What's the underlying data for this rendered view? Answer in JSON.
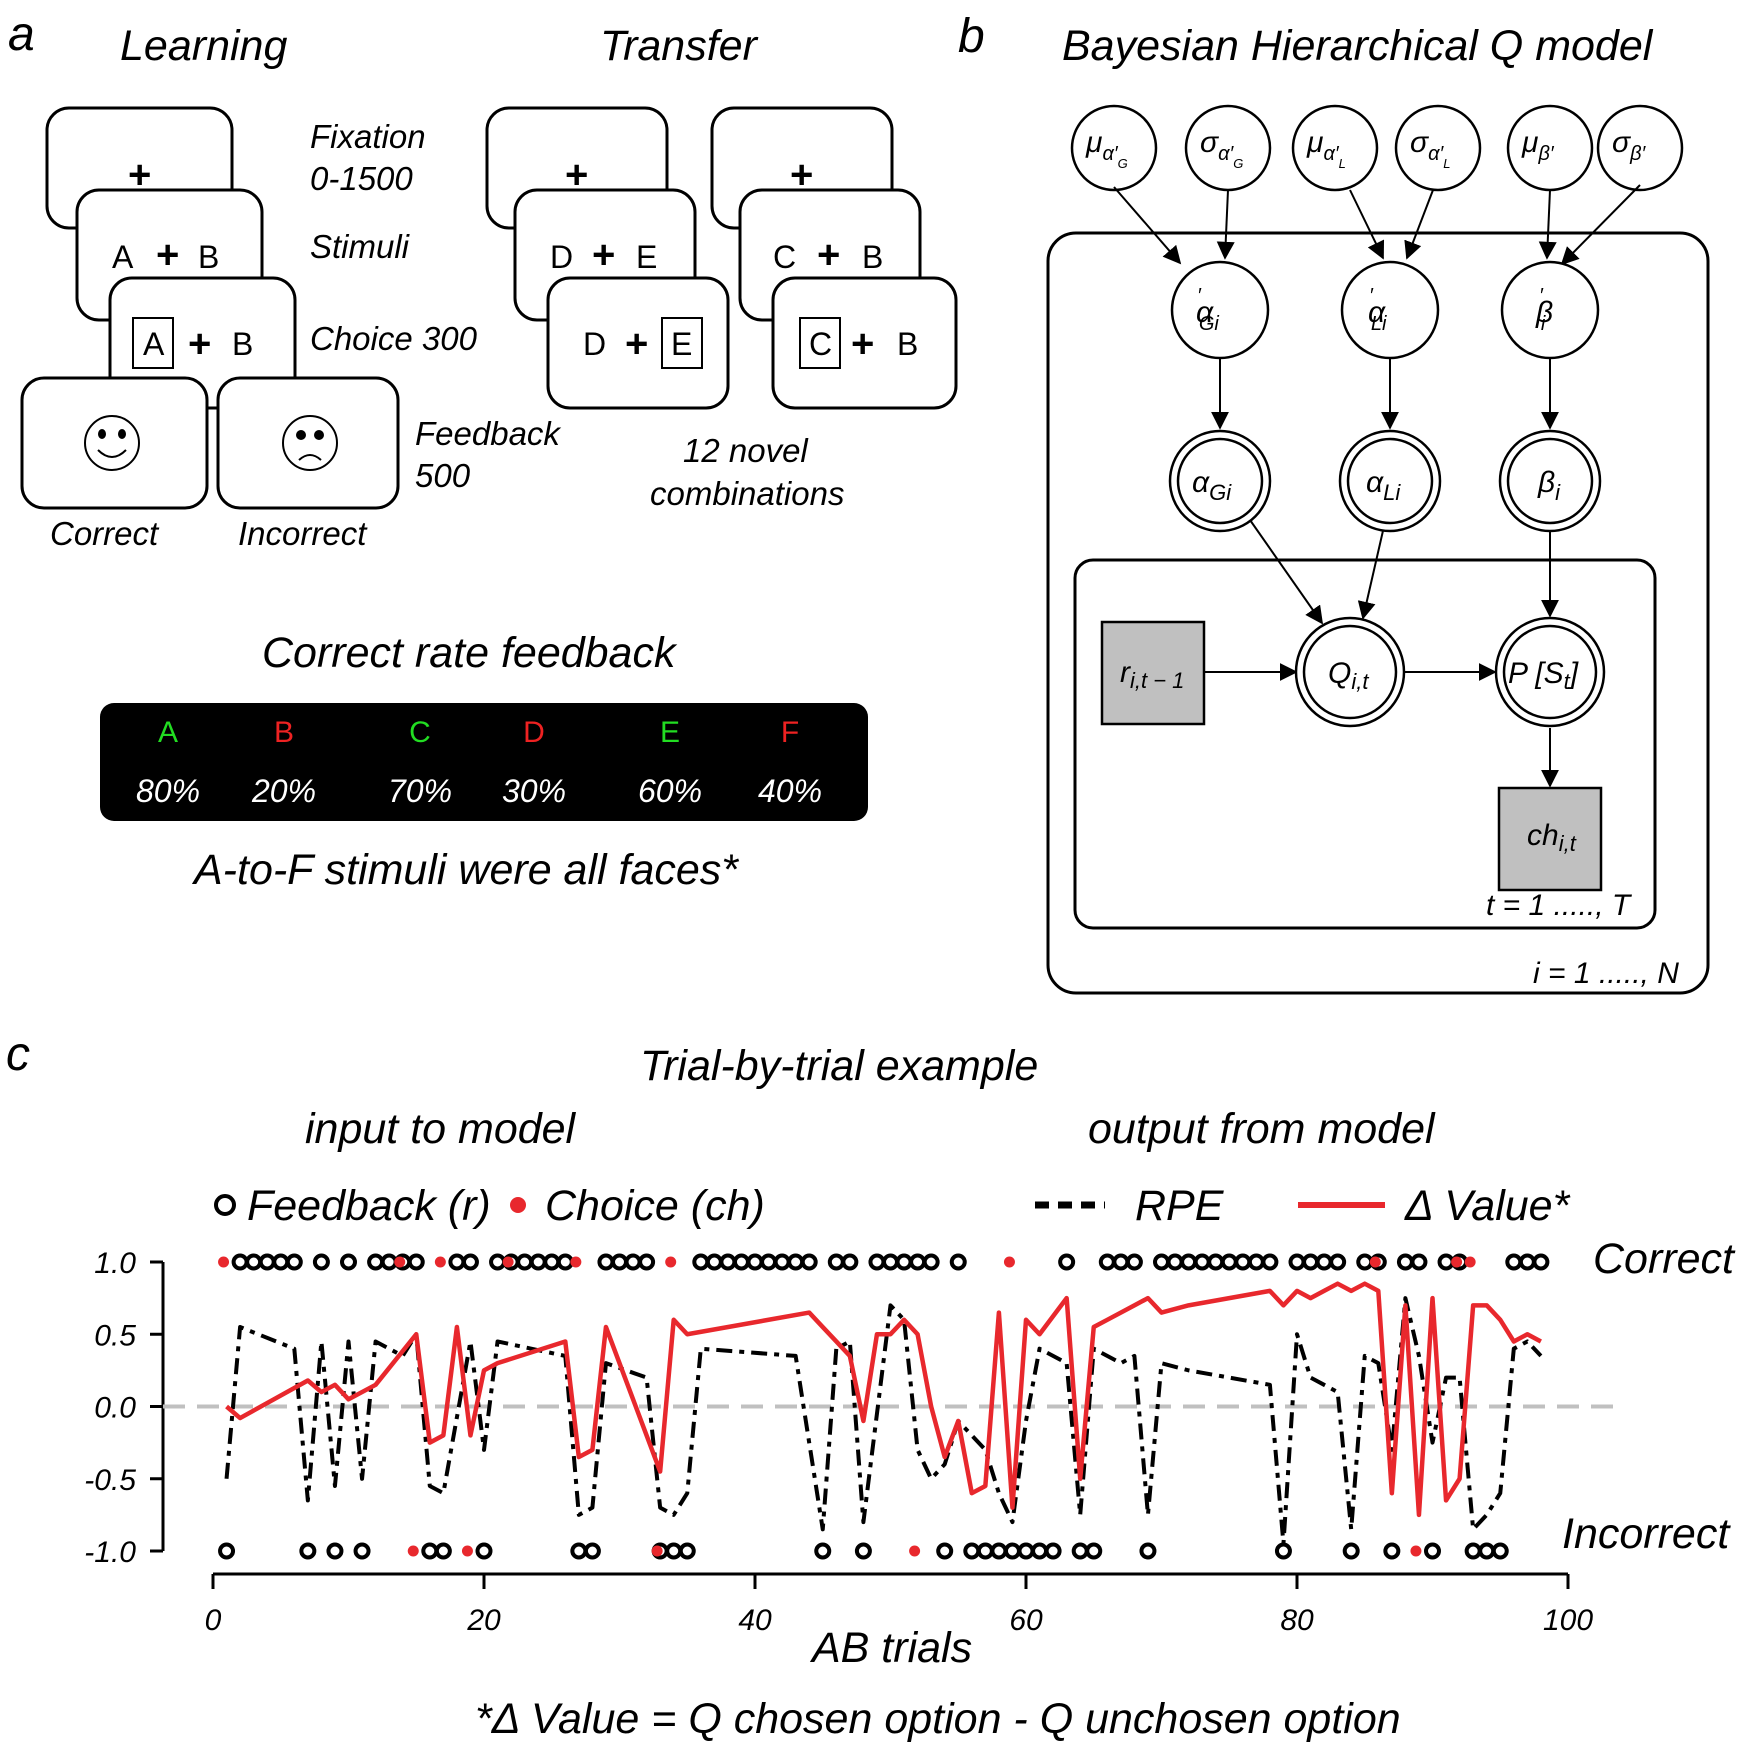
{
  "panel_a": {
    "letter": "a",
    "learning_title": "Learning",
    "transfer_title": "Transfer",
    "fixation_label_1": "Fixation",
    "fixation_label_2": "0-1500",
    "stimuli_label": "Stimuli",
    "choice_label": "Choice 300",
    "feedback_label_1": "Feedback",
    "feedback_label_2": "500",
    "correct_label": "Correct",
    "incorrect_label": "Incorrect",
    "plus": "+",
    "learning_pair": [
      "A",
      "B"
    ],
    "transfer_pair_1": [
      "D",
      "E"
    ],
    "transfer_pair_2": [
      "C",
      "B"
    ],
    "novel_1": "12 novel",
    "novel_2": "combinations",
    "rate_title": "Correct rate feedback",
    "rates": [
      {
        "letter": "A",
        "pct": "80%",
        "color": "#22dd22"
      },
      {
        "letter": "B",
        "pct": "20%",
        "color": "#ee2222"
      },
      {
        "letter": "C",
        "pct": "70%",
        "color": "#22dd22"
      },
      {
        "letter": "D",
        "pct": "30%",
        "color": "#ee2222"
      },
      {
        "letter": "E",
        "pct": "60%",
        "color": "#22dd22"
      },
      {
        "letter": "F",
        "pct": "40%",
        "color": "#ee2222"
      }
    ],
    "faces_note": "A-to-F stimuli were all faces*"
  },
  "panel_b": {
    "letter": "b",
    "title": "Bayesian Hierarchical Q model",
    "hyper": [
      {
        "sym": "μ",
        "sub": "α′",
        "sub2": "G"
      },
      {
        "sym": "σ",
        "sub": "α′",
        "sub2": "G"
      },
      {
        "sym": "μ",
        "sub": "α′",
        "sub2": "L"
      },
      {
        "sym": "σ",
        "sub": "α′",
        "sub2": "L"
      },
      {
        "sym": "μ",
        "sub": "β′",
        "sub2": ""
      },
      {
        "sym": "σ",
        "sub": "β′",
        "sub2": ""
      }
    ],
    "subject_params": [
      {
        "sym": "α",
        "sup": "′",
        "sub": "Gi"
      },
      {
        "sym": "α",
        "sup": "′",
        "sub": "Li"
      },
      {
        "sym": "β",
        "sup": "′",
        "sub": "i"
      }
    ],
    "transformed": [
      {
        "sym": "α",
        "sub": "Gi"
      },
      {
        "sym": "α",
        "sub": "Li"
      },
      {
        "sym": "β",
        "sub": "i"
      }
    ],
    "reward": {
      "sym": "r",
      "sub": "i,t − 1"
    },
    "q": {
      "sym": "Q",
      "sub": "i,t"
    },
    "p": {
      "pre": "P [S",
      "sub": "t",
      "post": "]"
    },
    "choice": {
      "sym": "ch",
      "sub": "i,t"
    },
    "plate_t": "t = 1 ....., T",
    "plate_i": "i = 1 ....., N",
    "observed_fill": "#c0c0c0"
  },
  "panel_c": {
    "letter": "c",
    "title": "Trial-by-trial example",
    "input_label": "input to model",
    "output_label": "output from model",
    "legend": {
      "feedback": "Feedback (r)",
      "choice": "Choice (ch)",
      "rpe": "RPE",
      "value": "Δ Value*"
    },
    "correct_label": "Correct",
    "incorrect_label": "Incorrect",
    "footnote": "*Δ Value = Q chosen option - Q unchosen option"
  },
  "chart_data": {
    "type": "line",
    "xlabel": "AB trials",
    "ylabel": "",
    "xlim": [
      0,
      100
    ],
    "ylim": [
      -1.0,
      1.0
    ],
    "xticks": [
      0,
      20,
      40,
      60,
      80,
      100
    ],
    "yticks": [
      1.0,
      0.5,
      0.0,
      -0.5,
      -1.0
    ],
    "ytick_labels": [
      "1.0",
      "0.5",
      "0.0",
      "-0.5",
      "-1.0"
    ],
    "zero_line": "dashed gray",
    "colors": {
      "feedback": "#000000",
      "choice": "#e8282d",
      "rpe": "#000000",
      "value": "#e8282d",
      "zero": "#c0c0c0"
    },
    "feedback_incorrect_trials": [
      1,
      7,
      9,
      11,
      16,
      17,
      20,
      27,
      28,
      33,
      34,
      35,
      45,
      48,
      54,
      56,
      57,
      58,
      59,
      60,
      61,
      62,
      64,
      65,
      69,
      79,
      84,
      87,
      90,
      93,
      94,
      95
    ],
    "feedback_correct_trials": [
      2,
      3,
      4,
      5,
      6,
      8,
      10,
      12,
      13,
      14,
      15,
      18,
      19,
      21,
      22,
      23,
      24,
      25,
      26,
      29,
      30,
      31,
      32,
      36,
      37,
      38,
      39,
      40,
      41,
      42,
      43,
      44,
      46,
      47,
      49,
      50,
      51,
      52,
      53,
      55,
      63,
      66,
      67,
      68,
      70,
      71,
      72,
      73,
      74,
      75,
      76,
      77,
      78,
      80,
      81,
      82,
      83,
      85,
      86,
      88,
      89,
      91,
      92,
      96,
      97,
      98
    ],
    "choice_incorrect_trials": [
      15,
      19,
      33,
      52,
      89
    ],
    "choice_correct_trials": [
      1,
      14,
      17,
      22,
      27,
      34,
      59,
      86,
      92,
      93
    ],
    "series": [
      {
        "name": "RPE",
        "x": [
          1,
          2,
          6,
          7,
          8,
          9,
          10,
          11,
          12,
          14,
          15,
          16,
          17,
          19,
          20,
          21,
          26,
          27,
          28,
          29,
          32,
          33,
          34,
          35,
          36,
          43,
          45,
          46,
          47,
          48,
          50,
          51,
          52,
          53,
          54,
          55,
          56,
          57,
          58,
          59,
          60,
          61,
          63,
          64,
          65,
          67,
          68,
          69,
          70,
          72,
          75,
          78,
          79,
          80,
          81,
          82,
          83,
          84,
          85,
          86,
          87,
          88,
          89,
          90,
          91,
          92,
          93,
          94,
          95,
          96,
          97,
          98
        ],
        "y": [
          -0.5,
          0.55,
          0.4,
          -0.65,
          0.45,
          -0.55,
          0.45,
          -0.5,
          0.45,
          0.35,
          0.5,
          -0.55,
          -0.6,
          0.45,
          -0.3,
          0.45,
          0.35,
          -0.75,
          -0.7,
          0.3,
          0.2,
          -0.7,
          -0.75,
          -0.6,
          0.4,
          0.35,
          -0.85,
          0.4,
          0.45,
          -0.8,
          0.7,
          0.6,
          -0.3,
          -0.5,
          -0.4,
          -0.1,
          -0.2,
          -0.3,
          -0.6,
          -0.8,
          -0.1,
          0.4,
          0.3,
          -0.75,
          0.4,
          0.3,
          0.35,
          -0.75,
          0.3,
          0.25,
          0.2,
          0.15,
          -0.95,
          0.5,
          0.2,
          0.15,
          0.1,
          -0.85,
          0.35,
          0.3,
          -0.3,
          0.75,
          0.35,
          -0.25,
          0.2,
          0.2,
          -0.85,
          -0.75,
          -0.6,
          0.4,
          0.45,
          0.35
        ]
      },
      {
        "name": "Δ Value*",
        "x": [
          1,
          2,
          7,
          8,
          9,
          10,
          11,
          12,
          15,
          16,
          17,
          18,
          19,
          20,
          21,
          26,
          27,
          28,
          29,
          33,
          34,
          35,
          44,
          45,
          46,
          47,
          48,
          49,
          50,
          51,
          52,
          53,
          54,
          55,
          56,
          57,
          58,
          59,
          60,
          61,
          63,
          64,
          65,
          66,
          68,
          69,
          70,
          72,
          75,
          78,
          79,
          80,
          81,
          82,
          83,
          84,
          85,
          86,
          87,
          88,
          89,
          90,
          91,
          92,
          93,
          94,
          95,
          96,
          97,
          98
        ],
        "y": [
          0.0,
          -0.08,
          0.18,
          0.1,
          0.15,
          0.05,
          0.1,
          0.15,
          0.5,
          -0.25,
          -0.2,
          0.55,
          -0.2,
          0.25,
          0.3,
          0.45,
          -0.35,
          -0.3,
          0.55,
          -0.45,
          0.6,
          0.5,
          0.65,
          0.55,
          0.45,
          0.35,
          -0.1,
          0.5,
          0.5,
          0.6,
          0.5,
          0.0,
          -0.35,
          -0.1,
          -0.6,
          -0.55,
          0.65,
          -0.7,
          0.6,
          0.5,
          0.75,
          -0.5,
          0.55,
          0.6,
          0.7,
          0.75,
          0.65,
          0.7,
          0.75,
          0.8,
          0.7,
          0.8,
          0.75,
          0.8,
          0.85,
          0.8,
          0.85,
          0.8,
          -0.6,
          0.7,
          -0.75,
          0.75,
          -0.65,
          -0.5,
          0.7,
          0.7,
          0.6,
          0.45,
          0.5,
          0.45
        ]
      }
    ]
  }
}
